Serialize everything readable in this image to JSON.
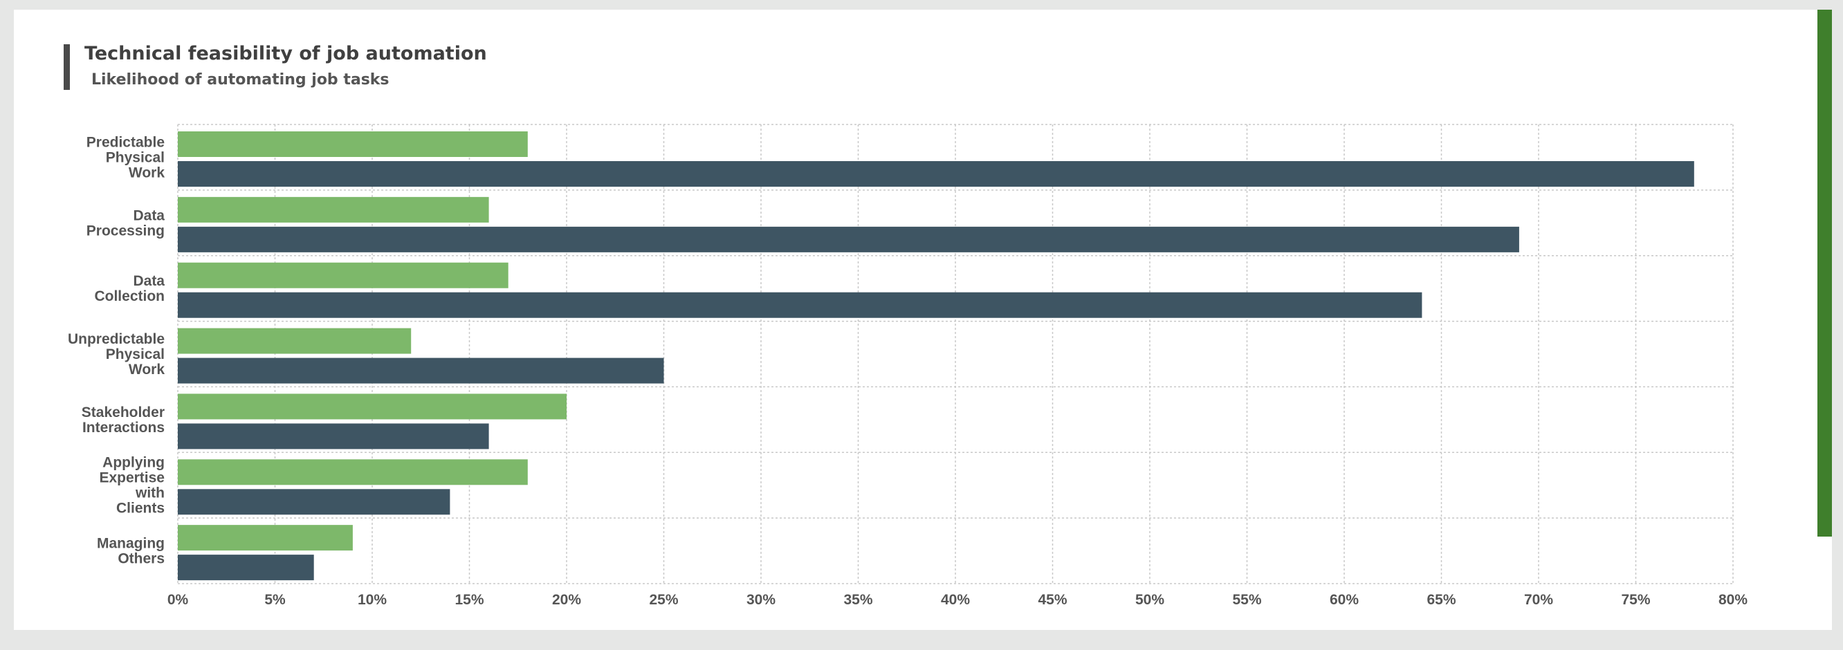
{
  "chart_data": {
    "type": "bar",
    "orientation": "horizontal",
    "title": "Technical feasibility of job automation",
    "subtitle": "Likelihood of automating job tasks",
    "categories": [
      [
        "Predictable",
        "Physical",
        "Work"
      ],
      [
        "Data",
        "Processing"
      ],
      [
        "Data",
        "Collection"
      ],
      [
        "Unpredictable",
        "Physical",
        "Work"
      ],
      [
        "Stakeholder",
        "Interactions"
      ],
      [
        "Applying",
        "Expertise",
        "with",
        "Clients"
      ],
      [
        "Managing",
        "Others"
      ]
    ],
    "series": [
      {
        "color": "#7db86a",
        "values": [
          18,
          16,
          17,
          12,
          20,
          18,
          9
        ]
      },
      {
        "color": "#3e5563",
        "values": [
          78,
          69,
          64,
          25,
          16,
          14,
          7
        ]
      }
    ],
    "xlim": [
      0,
      80
    ],
    "xticks": [
      0,
      5,
      10,
      15,
      20,
      25,
      30,
      35,
      40,
      45,
      50,
      55,
      60,
      65,
      70,
      75,
      80
    ],
    "tick_suffix": "%",
    "grid": true,
    "legend": "none"
  },
  "colors": {
    "accent": "#3f7f2c",
    "grid": "#c8c8c8",
    "label": "#555555"
  }
}
